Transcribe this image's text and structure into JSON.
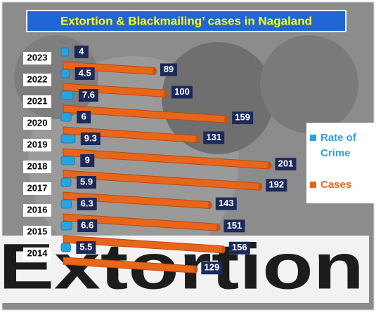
{
  "chart_data": {
    "type": "bar",
    "title": "Extortion & Blackmailing’ cases in Nagaland",
    "categories": [
      "2023",
      "2022",
      "2021",
      "2020",
      "2019",
      "2018",
      "2017",
      "2016",
      "2015",
      "2014"
    ],
    "series": [
      {
        "name": "Rate of Crime",
        "color": "#29a3e0",
        "values": [
          4,
          4.5,
          7.6,
          6,
          9.3,
          9,
          5.9,
          6.3,
          6.6,
          5.5
        ]
      },
      {
        "name": "Cases",
        "color": "#e8651a",
        "values": [
          89,
          100,
          159,
          131,
          201,
          192,
          143,
          151,
          156,
          129
        ]
      }
    ],
    "annotation": "Extortion"
  }
}
